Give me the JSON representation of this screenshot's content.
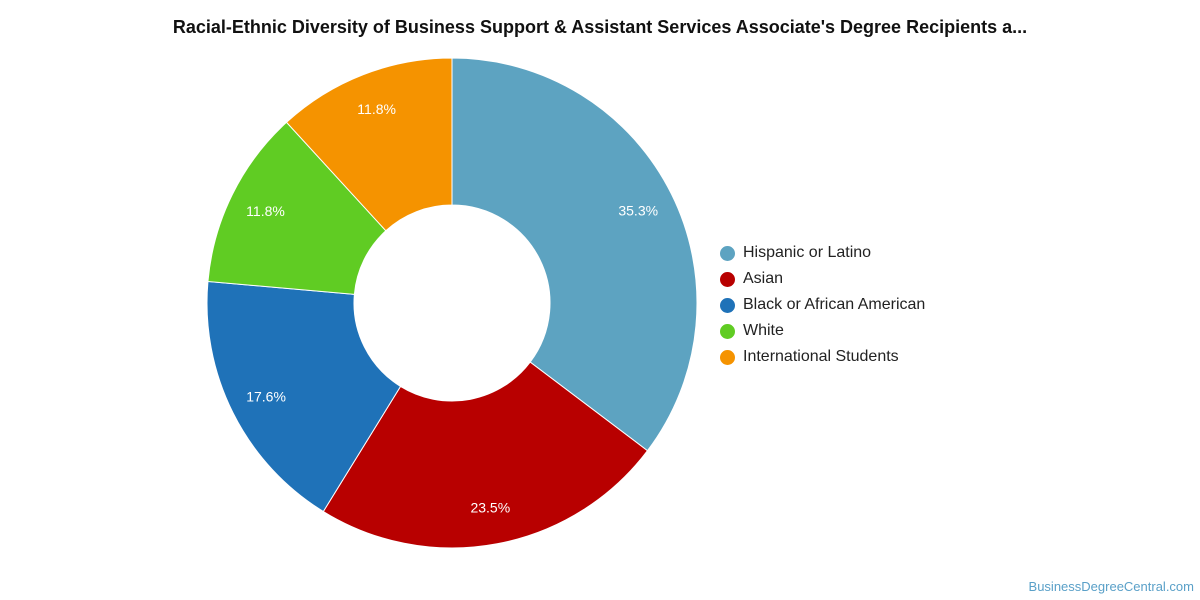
{
  "title": "Racial-Ethnic Diversity of Business Support & Assistant Services Associate's Degree Recipients a...",
  "source": "BusinessDegreeCentral.com",
  "chart_data": {
    "type": "pie",
    "donut": true,
    "categories": [
      "Hispanic or Latino",
      "Asian",
      "Black or African American",
      "White",
      "International Students"
    ],
    "values": [
      35.3,
      23.5,
      17.6,
      11.8,
      11.8
    ],
    "labels": [
      "35.3%",
      "23.5%",
      "17.6%",
      "11.8%",
      "11.8%"
    ],
    "colors": [
      "#5da3c1",
      "#b80000",
      "#1f72b8",
      "#60cc23",
      "#f59300"
    ],
    "legend_position": "right"
  }
}
